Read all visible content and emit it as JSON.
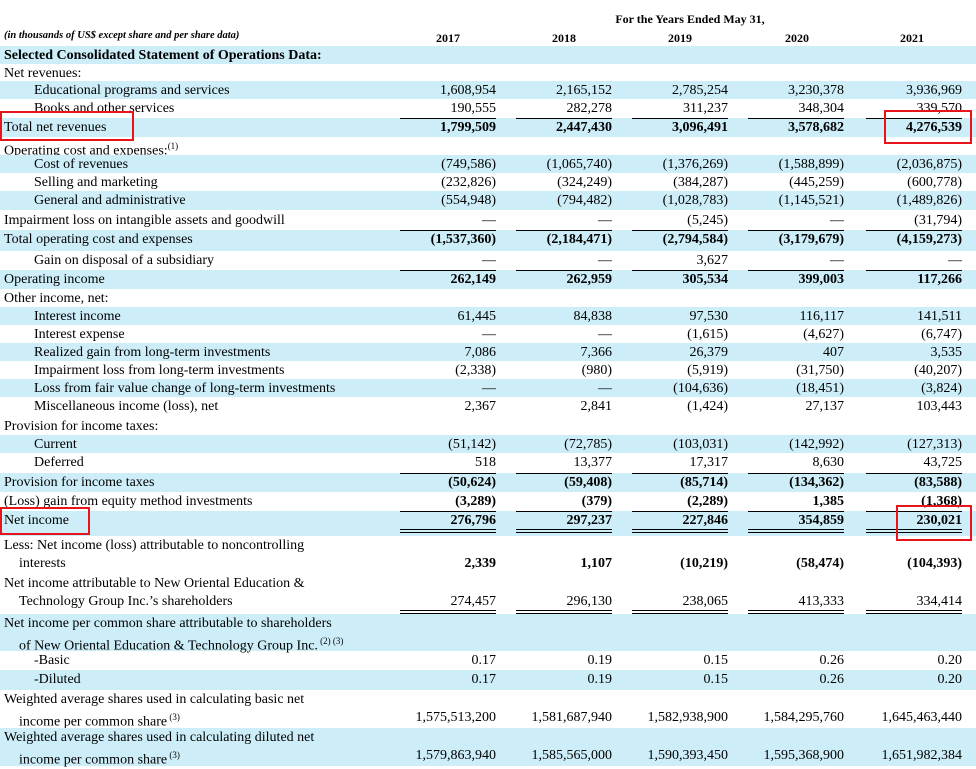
{
  "header": {
    "period_title": "For the Years Ended May 31,",
    "units_note": "(in thousands of US$ except share and per share data)",
    "years": [
      "2017",
      "2018",
      "2019",
      "2020",
      "2021"
    ]
  },
  "rows": [
    {
      "label": "Selected Consolidated Statement of Operations Data:",
      "bold": true,
      "indent": 0,
      "values": []
    },
    {
      "label": "Net revenues:",
      "indent": 0,
      "values": []
    },
    {
      "label": "Educational programs and services",
      "indent": 1,
      "values": [
        "1,608,954",
        "2,165,152",
        "2,785,254",
        "3,230,378",
        "3,936,969"
      ]
    },
    {
      "label": "Books and other services",
      "indent": 1,
      "values": [
        "190,555",
        "282,278",
        "311,237",
        "348,304",
        "339,570"
      ]
    },
    {
      "label": "Total net revenues",
      "indent": 0,
      "bold_values": true,
      "top_rule": true,
      "values": [
        "1,799,509",
        "2,447,430",
        "3,096,491",
        "3,578,682",
        "4,276,539"
      ]
    },
    {
      "label": "Operating cost and expenses:",
      "sup": "(1)",
      "indent": 0,
      "values": []
    },
    {
      "label": "Cost of revenues",
      "indent": 1,
      "values": [
        "(749,586)",
        "(1,065,740)",
        "(1,376,269)",
        "(1,588,899)",
        "(2,036,875)"
      ]
    },
    {
      "label": "Selling and marketing",
      "indent": 1,
      "values": [
        "(232,826)",
        "(324,249)",
        "(384,287)",
        "(445,259)",
        "(600,778)"
      ]
    },
    {
      "label": "General and administrative",
      "indent": 1,
      "values": [
        "(554,948)",
        "(794,482)",
        "(1,028,783)",
        "(1,145,521)",
        "(1,489,826)"
      ]
    },
    {
      "label": "Impairment loss on intangible assets and goodwill",
      "indent": 0,
      "values": [
        "—",
        "—",
        "(5,245)",
        "—",
        "(31,794)"
      ]
    },
    {
      "label": "Total operating cost and expenses",
      "indent": 0,
      "bold_values": true,
      "top_rule": true,
      "values": [
        "(1,537,360)",
        "(2,184,471)",
        "(2,794,584)",
        "(3,179,679)",
        "(4,159,273)"
      ]
    },
    {
      "label": "Gain on disposal of a subsidiary",
      "indent": 1,
      "values": [
        "—",
        "—",
        "3,627",
        "—",
        "—"
      ]
    },
    {
      "label": "Operating income",
      "indent": 0,
      "bold_values": true,
      "top_rule": true,
      "values": [
        "262,149",
        "262,959",
        "305,534",
        "399,003",
        "117,266"
      ]
    },
    {
      "label": "Other income, net:",
      "indent": 0,
      "values": []
    },
    {
      "label": "Interest income",
      "indent": 1,
      "values": [
        "61,445",
        "84,838",
        "97,530",
        "116,117",
        "141,511"
      ]
    },
    {
      "label": "Interest expense",
      "indent": 1,
      "values": [
        "—",
        "—",
        "(1,615)",
        "(4,627)",
        "(6,747)"
      ]
    },
    {
      "label": "Realized gain from long-term investments",
      "indent": 1,
      "values": [
        "7,086",
        "7,366",
        "26,379",
        "407",
        "3,535"
      ]
    },
    {
      "label": "Impairment loss from long-term investments",
      "indent": 1,
      "values": [
        "(2,338)",
        "(980)",
        "(5,919)",
        "(31,750)",
        "(40,207)"
      ]
    },
    {
      "label": "Loss from fair value change of long-term investments",
      "indent": 1,
      "values": [
        "—",
        "—",
        "(104,636)",
        "(18,451)",
        "(3,824)"
      ]
    },
    {
      "label": "Miscellaneous income (loss), net",
      "indent": 1,
      "values": [
        "2,367",
        "2,841",
        "(1,424)",
        "27,137",
        "103,443"
      ]
    },
    {
      "label": "Provision for income taxes:",
      "indent": 0,
      "top_rule": true,
      "values": []
    },
    {
      "label": "Current",
      "indent": 1,
      "values": [
        "(51,142)",
        "(72,785)",
        "(103,031)",
        "(142,992)",
        "(127,313)"
      ]
    },
    {
      "label": "Deferred",
      "indent": 1,
      "values": [
        "518",
        "13,377",
        "17,317",
        "8,630",
        "43,725"
      ]
    },
    {
      "label": "Provision for income taxes",
      "indent": 0,
      "bold_values": true,
      "top_rule": true,
      "values": [
        "(50,624)",
        "(59,408)",
        "(85,714)",
        "(134,362)",
        "(83,588)"
      ]
    },
    {
      "label": "(Loss) gain from equity method investments",
      "indent": 0,
      "bold_values": true,
      "values": [
        "(3,289)",
        "(379)",
        "(2,289)",
        "1,385",
        "(1,368)"
      ]
    },
    {
      "label": "Net income",
      "indent": 0,
      "bold_values": true,
      "top_rule": true,
      "double_rule": true,
      "values": [
        "276,796",
        "297,237",
        "227,846",
        "354,859",
        "230,021"
      ]
    },
    {
      "label": "Less: Net income (loss) attributable to noncontrolling",
      "label2": "interests",
      "indent": 0,
      "bold_values": true,
      "values": [
        "2,339",
        "1,107",
        "(10,219)",
        "(58,474)",
        "(104,393)"
      ]
    },
    {
      "label": "Net income attributable to New Oriental Education &",
      "label2": "Technology Group Inc.’s shareholders",
      "indent": 0,
      "double_rule": true,
      "values": [
        "274,457",
        "296,130",
        "238,065",
        "413,333",
        "334,414"
      ]
    },
    {
      "label": "Net income per common share attributable to shareholders",
      "label2": "of New Oriental Education & Technology Group Inc.",
      "sup": "(2) (3)",
      "indent": 0,
      "values": []
    },
    {
      "label": "-Basic",
      "indent": 1,
      "values": [
        "0.17",
        "0.19",
        "0.15",
        "0.26",
        "0.20"
      ]
    },
    {
      "label": "-Diluted",
      "indent": 1,
      "values": [
        "0.17",
        "0.19",
        "0.15",
        "0.26",
        "0.20"
      ]
    },
    {
      "label": "Weighted average shares used in calculating basic net",
      "label2": "income per common share",
      "sup": "(3)",
      "indent": 0,
      "values": [
        "1,575,513,200",
        "1,581,687,940",
        "1,582,938,900",
        "1,584,295,760",
        "1,645,463,440"
      ]
    },
    {
      "label": "Weighted average shares used in calculating diluted net",
      "label2": "income per common share",
      "sup": "(3)",
      "indent": 0,
      "values": [
        "1,579,863,940",
        "1,585,565,000",
        "1,590,393,450",
        "1,595,368,900",
        "1,651,982,384"
      ]
    }
  ],
  "highlight_color": "#e8141b",
  "shade_color": "#cdeef9"
}
